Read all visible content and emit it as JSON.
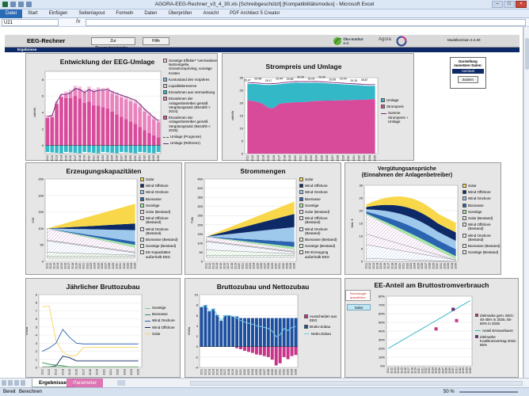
{
  "window": {
    "title": "AGORA-EEG-Rechner_v3_4_30.xls  [Schreibgeschützt]  [Kompatibilitätsmodus]  -  Microsoft Excel"
  },
  "ribbon": {
    "file": "Datei",
    "tabs": [
      "Start",
      "Einfügen",
      "Seitenlayout",
      "Formeln",
      "Daten",
      "Überprüfen",
      "Ansicht",
      "PDF Architect 5 Creator"
    ]
  },
  "formula": {
    "cell": "U21",
    "fx": "fx"
  },
  "header": {
    "title": "EEG-Rechner",
    "settings_button": "Zur Parametereingabe...",
    "help_button": "Hilfe",
    "model_version": "Modellversion 3.4.30",
    "section": "Ergebnisse",
    "logo_oeko": "Öko-Institut e.V.",
    "logo_agora": "Agora"
  },
  "display_box": {
    "title": "Darstellung monetärer Daten:",
    "value": "nominal",
    "button": "ändern"
  },
  "colors": {
    "teal": "#33b8c8",
    "pink": "#d84b9b",
    "yellow": "#f8d84a",
    "navy": "#0e2a66",
    "blue": "#2a64b0",
    "lightblue": "#9ec8ec",
    "purple": "#6b2b78",
    "lightgreen": "#a6e8a6",
    "green": "#2e9e50"
  },
  "years": [
    "2011",
    "2012",
    "2013",
    "2014",
    "2015",
    "2016",
    "2017",
    "2018",
    "2019",
    "2020",
    "2021",
    "2022",
    "2023",
    "2024",
    "2025",
    "2026",
    "2027",
    "2028",
    "2029",
    "2030",
    "2031",
    "2032",
    "2033",
    "2034",
    "2035"
  ],
  "charts": {
    "umlage": {
      "title": "Entwicklung der EEG-Umlage",
      "ylabel": "ct/kWh",
      "yticks": [
        "0",
        "2",
        "4",
        "6",
        "8"
      ],
      "legend": [
        "Sonstige Effekte* *vermiedene Netzentgelte, Grünstromprivileg, sonstige Kosten",
        "Kontostand des Vorjahres",
        "Liquiditätsreserve",
        "Einnahmen aus Vermarktung",
        "Einnahmen der Anlagenbetreiber gemäß Vergütungssatz (Bezahlt > 2014)",
        "Einnahmen der Anlagenbetreiber gemäß Vergütungssatz (Bezahlt < 2015)",
        "Umlage (Prognose)",
        "Umlage (Referenz)"
      ]
    },
    "strompreis": {
      "title": "Strompreis und Umlage",
      "ylabel": "ct/kWh",
      "yticks": [
        "0",
        "5",
        "10",
        "15",
        "20",
        "25",
        "30"
      ],
      "labels": [
        "29,47",
        "29,60",
        "29,48",
        "29,21",
        "29,17",
        "29,23",
        "29,44",
        "29,73",
        "29,89",
        "30,14",
        "30,09",
        "30,07",
        "30,09",
        "30,13",
        "29,99",
        "29,85",
        "29,66",
        "29,56",
        "29,40",
        "29,26",
        "29,15",
        "29,02",
        "28,87",
        "28,78"
      ],
      "legend": [
        "Umlage",
        "Strompreis",
        "Summe Strompreis + Umlage"
      ]
    },
    "kapazitaeten": {
      "title": "Erzeugungskapazitäten",
      "ylabel": "GW",
      "yticks": [
        "0",
        "50",
        "100",
        "150",
        "200",
        "250"
      ],
      "legend": [
        "Solar",
        "Wind Offshore",
        "Wind Onshore",
        "Biomasse",
        "Sonstige",
        "Solar (Bestand)",
        "Wind Offshore (Bestand)",
        "Wind Onshore (Bestand)",
        "Biomasse (Bestand)",
        "Sonstige (Bestand)",
        "EE-Kapazitäten außerhalb EEG"
      ]
    },
    "strommengen": {
      "title": "Strommengen",
      "ylabel": "TWh",
      "yticks": [
        "0",
        "50",
        "100",
        "150",
        "200",
        "250",
        "300",
        "350",
        "400",
        "450"
      ],
      "legend": [
        "Solar",
        "Wind Offshore",
        "Wind Onshore",
        "Biomasse",
        "Sonstige",
        "Solar (Bestand)",
        "Wind Offshore (Bestand)",
        "Wind Onshore (Bestand)",
        "Biomasse (Bestand)",
        "Sonstige (Bestand)",
        "EE-Erzeugung außerhalb EEG"
      ]
    },
    "verguetung": {
      "title": "Vergütungsansprüche\n(Einnahmen der Anlagenbetreiber)",
      "ylabel": "Mrd. €",
      "yticks": [
        "0",
        "5",
        "10",
        "15",
        "20",
        "25",
        "30"
      ],
      "legend": [
        "Solar",
        "Wind Offshore",
        "Wind Onshore",
        "Biomasse",
        "Sonstige",
        "Solar (Bestand)",
        "Wind Offshore (Bestand)",
        "Wind Onshore (Bestand)",
        "Biomasse (Bestand)",
        "Sonstige (Bestand)"
      ]
    },
    "bruttozubau": {
      "title": "Jährlicher Bruttozubau",
      "ylabel": "GW/a",
      "yticks": [
        "0",
        "1",
        "2",
        "3",
        "4",
        "5",
        "6",
        "7",
        "8",
        "9"
      ],
      "legend": [
        "Sonstige",
        "Biomasse",
        "Wind Onshore",
        "Wind Offshore",
        "Solar"
      ]
    },
    "nettozubau": {
      "title": "Bruttozubau und Nettozubau",
      "ylabel": "GW/a",
      "yticks": [
        "-4",
        "-2",
        "0",
        "2",
        "4",
        "6",
        "8",
        "10"
      ],
      "legend": [
        "Ausscheiden aus EEG",
        "Brutto-Zubau",
        "Netto-Zubau"
      ]
    },
    "eeanteil": {
      "title": "EE-Anteil am Bruttostromverbrauch",
      "tech_label": "Technologie auswählen:",
      "tech_value": "Solar",
      "yticks": [
        "0%",
        "10%",
        "20%",
        "30%",
        "40%",
        "50%",
        "60%",
        "70%",
        "80%"
      ],
      "legend": [
        "Zielmarke gem. EEG: 40-45% in 2025, 55-60% in 2035",
        "Anteil Erneuerbarer",
        "Zielmarke Koalitionsvertrag 2015: 65%"
      ]
    }
  },
  "chart_data": [
    {
      "type": "area",
      "title": "Entwicklung der EEG-Umlage",
      "ylabel": "ct/kWh",
      "ylim": [
        -1,
        9
      ],
      "x": [
        "2011",
        "2012",
        "2013",
        "2014",
        "2015",
        "2016",
        "2017",
        "2018",
        "2019",
        "2020",
        "2021",
        "2022",
        "2023",
        "2024",
        "2025",
        "2026",
        "2027",
        "2028",
        "2029",
        "2030",
        "2031",
        "2032",
        "2033",
        "2034",
        "2035"
      ],
      "series": [
        {
          "name": "Umlage (Referenz)",
          "values": [
            3.5,
            3.6,
            5.3,
            6.2,
            6.2,
            6.4,
            6.9,
            6.8,
            6.4,
            6.8,
            6.5,
            6.7,
            6.7,
            6.8,
            6.5,
            6.3,
            6.1,
            5.9,
            5.7,
            5.5,
            5.0,
            4.4,
            3.9,
            3.4,
            3.0
          ]
        }
      ]
    },
    {
      "type": "area",
      "title": "Strompreis und Umlage",
      "ylabel": "ct/kWh",
      "ylim": [
        0,
        30
      ],
      "series": [
        {
          "name": "Summe Strompreis + Umlage",
          "values": [
            29.47,
            29.6,
            29.48,
            29.21,
            29.17,
            29.23,
            29.44,
            29.73,
            29.89,
            30.14,
            30.09,
            30.07,
            30.09,
            30.13,
            29.99,
            29.85,
            29.66,
            29.56,
            29.4,
            29.26,
            29.15,
            29.02,
            28.87,
            28.78
          ]
        }
      ]
    },
    {
      "type": "area",
      "title": "Erzeugungskapazitäten",
      "ylabel": "GW",
      "ylim": [
        0,
        250
      ]
    },
    {
      "type": "area",
      "title": "Strommengen",
      "ylabel": "TWh",
      "ylim": [
        0,
        450
      ]
    },
    {
      "type": "area",
      "title": "Vergütungsansprüche (Einnahmen der Anlagenbetreiber)",
      "ylabel": "Mrd. €",
      "ylim": [
        0,
        30
      ]
    },
    {
      "type": "line",
      "title": "Jährlicher Bruttozubau",
      "ylabel": "GW/a",
      "ylim": [
        0,
        9
      ],
      "series": [
        {
          "name": "Solar",
          "values": [
            7.5,
            7.6,
            3.3,
            1.9,
            1.4,
            1.5,
            2.5,
            2.5,
            2.5,
            2.5,
            2.5,
            2.5,
            2.5,
            2.5,
            2.5
          ]
        },
        {
          "name": "Wind Onshore",
          "values": [
            2.0,
            2.4,
            3.0,
            4.7,
            3.7,
            3.0,
            2.9,
            2.9,
            2.9,
            2.9,
            2.9,
            2.9,
            2.9,
            2.9,
            2.9
          ]
        },
        {
          "name": "Wind Offshore",
          "values": [
            0.1,
            0.1,
            0.2,
            1.4,
            1.2,
            0.8,
            0.8,
            0.8,
            0.8,
            0.8,
            0.8,
            0.8,
            0.8,
            0.8,
            0.8
          ]
        },
        {
          "name": "Biomasse",
          "values": [
            0.6,
            0.4,
            0.3,
            0.2,
            0.1,
            0.1,
            0.1,
            0.1,
            0.1,
            0.1,
            0.1,
            0.1,
            0.1,
            0.1,
            0.1
          ]
        },
        {
          "name": "Sonstige",
          "values": [
            0.1,
            0.1,
            0.1,
            0.1,
            0.1,
            0.1,
            0.1,
            0.1,
            0.1,
            0.1,
            0.1,
            0.1,
            0.1,
            0.1,
            0.1
          ]
        }
      ]
    },
    {
      "type": "bar",
      "title": "Bruttozubau und Nettozubau",
      "ylabel": "GW/a",
      "ylim": [
        -4,
        10
      ]
    },
    {
      "type": "line",
      "title": "EE-Anteil am Bruttostromverbrauch",
      "ylim": [
        0,
        80
      ]
    }
  ],
  "sheet_tabs": [
    "Ergebnisse",
    "Parameter"
  ],
  "status": {
    "ready": "Bereit",
    "calc": "Berechnen",
    "zoom": "50 %"
  }
}
